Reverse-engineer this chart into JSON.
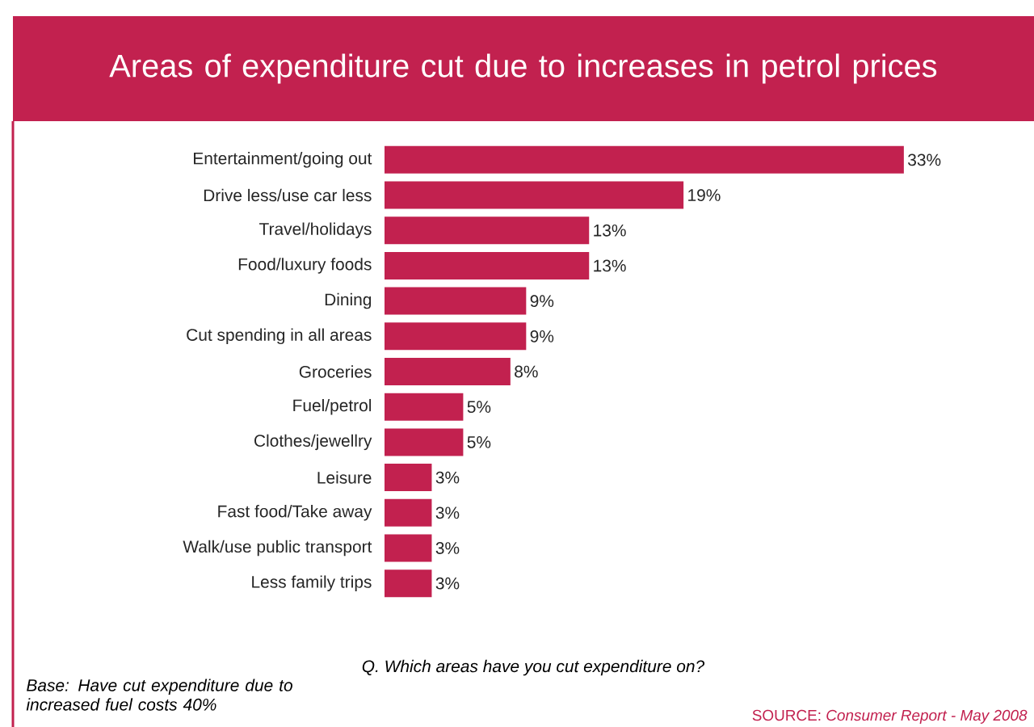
{
  "chart_data": {
    "type": "bar",
    "orientation": "horizontal",
    "title": "Areas of expenditure cut due to increases in petrol prices",
    "categories": [
      "Entertainment/going out",
      "Drive less/use car less",
      "Travel/holidays",
      "Food/luxury foods",
      "Dining",
      "Cut spending in all areas",
      "Groceries",
      "Fuel/petrol",
      "Clothes/jewellry",
      "Leisure",
      "Fast food/Take away",
      "Walk/use public transport",
      "Less family trips"
    ],
    "values": [
      33,
      19,
      13,
      13,
      9,
      9,
      8,
      5,
      5,
      3,
      3,
      3,
      3
    ],
    "value_labels": [
      "33%",
      "19%",
      "13%",
      "13%",
      "9%",
      "9%",
      "8%",
      "5%",
      "5%",
      "3%",
      "3%",
      "3%",
      "3%"
    ],
    "color": "#c2214f",
    "annotations": [
      "Q. Which areas have you cut expenditure on?",
      "Base: Have cut expenditure due to increased fuel costs 40%",
      "SOURCE: *Consumer Report - May 2008*"
    ]
  }
}
